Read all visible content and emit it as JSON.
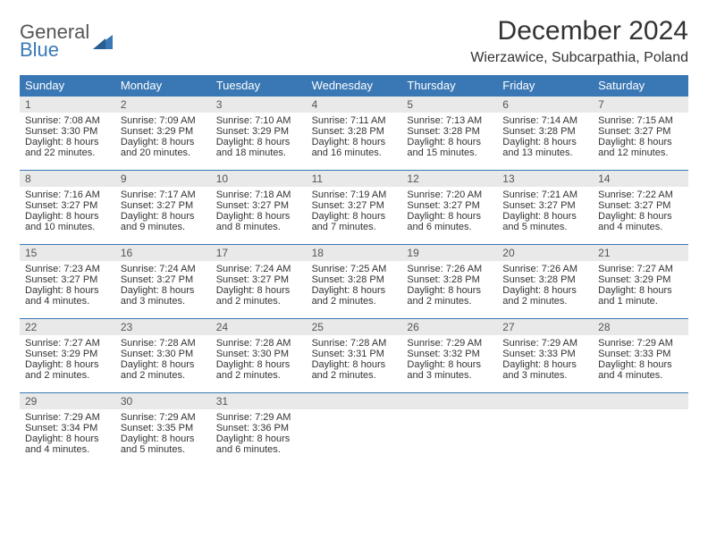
{
  "brand": {
    "general": "General",
    "blue": "Blue"
  },
  "title": "December 2024",
  "location": "Wierzawice, Subcarpathia, Poland",
  "colors": {
    "header_bg": "#3a78b5",
    "daynum_bg": "#e9e9e9",
    "border": "#3a78b5",
    "text": "#333333",
    "logo_blue": "#3a78b5"
  },
  "days_of_week": [
    "Sunday",
    "Monday",
    "Tuesday",
    "Wednesday",
    "Thursday",
    "Friday",
    "Saturday"
  ],
  "weeks": [
    [
      {
        "n": "1",
        "sr": "Sunrise: 7:08 AM",
        "ss": "Sunset: 3:30 PM",
        "dl": "Daylight: 8 hours and 22 minutes."
      },
      {
        "n": "2",
        "sr": "Sunrise: 7:09 AM",
        "ss": "Sunset: 3:29 PM",
        "dl": "Daylight: 8 hours and 20 minutes."
      },
      {
        "n": "3",
        "sr": "Sunrise: 7:10 AM",
        "ss": "Sunset: 3:29 PM",
        "dl": "Daylight: 8 hours and 18 minutes."
      },
      {
        "n": "4",
        "sr": "Sunrise: 7:11 AM",
        "ss": "Sunset: 3:28 PM",
        "dl": "Daylight: 8 hours and 16 minutes."
      },
      {
        "n": "5",
        "sr": "Sunrise: 7:13 AM",
        "ss": "Sunset: 3:28 PM",
        "dl": "Daylight: 8 hours and 15 minutes."
      },
      {
        "n": "6",
        "sr": "Sunrise: 7:14 AM",
        "ss": "Sunset: 3:28 PM",
        "dl": "Daylight: 8 hours and 13 minutes."
      },
      {
        "n": "7",
        "sr": "Sunrise: 7:15 AM",
        "ss": "Sunset: 3:27 PM",
        "dl": "Daylight: 8 hours and 12 minutes."
      }
    ],
    [
      {
        "n": "8",
        "sr": "Sunrise: 7:16 AM",
        "ss": "Sunset: 3:27 PM",
        "dl": "Daylight: 8 hours and 10 minutes."
      },
      {
        "n": "9",
        "sr": "Sunrise: 7:17 AM",
        "ss": "Sunset: 3:27 PM",
        "dl": "Daylight: 8 hours and 9 minutes."
      },
      {
        "n": "10",
        "sr": "Sunrise: 7:18 AM",
        "ss": "Sunset: 3:27 PM",
        "dl": "Daylight: 8 hours and 8 minutes."
      },
      {
        "n": "11",
        "sr": "Sunrise: 7:19 AM",
        "ss": "Sunset: 3:27 PM",
        "dl": "Daylight: 8 hours and 7 minutes."
      },
      {
        "n": "12",
        "sr": "Sunrise: 7:20 AM",
        "ss": "Sunset: 3:27 PM",
        "dl": "Daylight: 8 hours and 6 minutes."
      },
      {
        "n": "13",
        "sr": "Sunrise: 7:21 AM",
        "ss": "Sunset: 3:27 PM",
        "dl": "Daylight: 8 hours and 5 minutes."
      },
      {
        "n": "14",
        "sr": "Sunrise: 7:22 AM",
        "ss": "Sunset: 3:27 PM",
        "dl": "Daylight: 8 hours and 4 minutes."
      }
    ],
    [
      {
        "n": "15",
        "sr": "Sunrise: 7:23 AM",
        "ss": "Sunset: 3:27 PM",
        "dl": "Daylight: 8 hours and 4 minutes."
      },
      {
        "n": "16",
        "sr": "Sunrise: 7:24 AM",
        "ss": "Sunset: 3:27 PM",
        "dl": "Daylight: 8 hours and 3 minutes."
      },
      {
        "n": "17",
        "sr": "Sunrise: 7:24 AM",
        "ss": "Sunset: 3:27 PM",
        "dl": "Daylight: 8 hours and 2 minutes."
      },
      {
        "n": "18",
        "sr": "Sunrise: 7:25 AM",
        "ss": "Sunset: 3:28 PM",
        "dl": "Daylight: 8 hours and 2 minutes."
      },
      {
        "n": "19",
        "sr": "Sunrise: 7:26 AM",
        "ss": "Sunset: 3:28 PM",
        "dl": "Daylight: 8 hours and 2 minutes."
      },
      {
        "n": "20",
        "sr": "Sunrise: 7:26 AM",
        "ss": "Sunset: 3:28 PM",
        "dl": "Daylight: 8 hours and 2 minutes."
      },
      {
        "n": "21",
        "sr": "Sunrise: 7:27 AM",
        "ss": "Sunset: 3:29 PM",
        "dl": "Daylight: 8 hours and 1 minute."
      }
    ],
    [
      {
        "n": "22",
        "sr": "Sunrise: 7:27 AM",
        "ss": "Sunset: 3:29 PM",
        "dl": "Daylight: 8 hours and 2 minutes."
      },
      {
        "n": "23",
        "sr": "Sunrise: 7:28 AM",
        "ss": "Sunset: 3:30 PM",
        "dl": "Daylight: 8 hours and 2 minutes."
      },
      {
        "n": "24",
        "sr": "Sunrise: 7:28 AM",
        "ss": "Sunset: 3:30 PM",
        "dl": "Daylight: 8 hours and 2 minutes."
      },
      {
        "n": "25",
        "sr": "Sunrise: 7:28 AM",
        "ss": "Sunset: 3:31 PM",
        "dl": "Daylight: 8 hours and 2 minutes."
      },
      {
        "n": "26",
        "sr": "Sunrise: 7:29 AM",
        "ss": "Sunset: 3:32 PM",
        "dl": "Daylight: 8 hours and 3 minutes."
      },
      {
        "n": "27",
        "sr": "Sunrise: 7:29 AM",
        "ss": "Sunset: 3:33 PM",
        "dl": "Daylight: 8 hours and 3 minutes."
      },
      {
        "n": "28",
        "sr": "Sunrise: 7:29 AM",
        "ss": "Sunset: 3:33 PM",
        "dl": "Daylight: 8 hours and 4 minutes."
      }
    ],
    [
      {
        "n": "29",
        "sr": "Sunrise: 7:29 AM",
        "ss": "Sunset: 3:34 PM",
        "dl": "Daylight: 8 hours and 4 minutes."
      },
      {
        "n": "30",
        "sr": "Sunrise: 7:29 AM",
        "ss": "Sunset: 3:35 PM",
        "dl": "Daylight: 8 hours and 5 minutes."
      },
      {
        "n": "31",
        "sr": "Sunrise: 7:29 AM",
        "ss": "Sunset: 3:36 PM",
        "dl": "Daylight: 8 hours and 6 minutes."
      },
      {
        "n": "",
        "sr": "",
        "ss": "",
        "dl": ""
      },
      {
        "n": "",
        "sr": "",
        "ss": "",
        "dl": ""
      },
      {
        "n": "",
        "sr": "",
        "ss": "",
        "dl": ""
      },
      {
        "n": "",
        "sr": "",
        "ss": "",
        "dl": ""
      }
    ]
  ]
}
